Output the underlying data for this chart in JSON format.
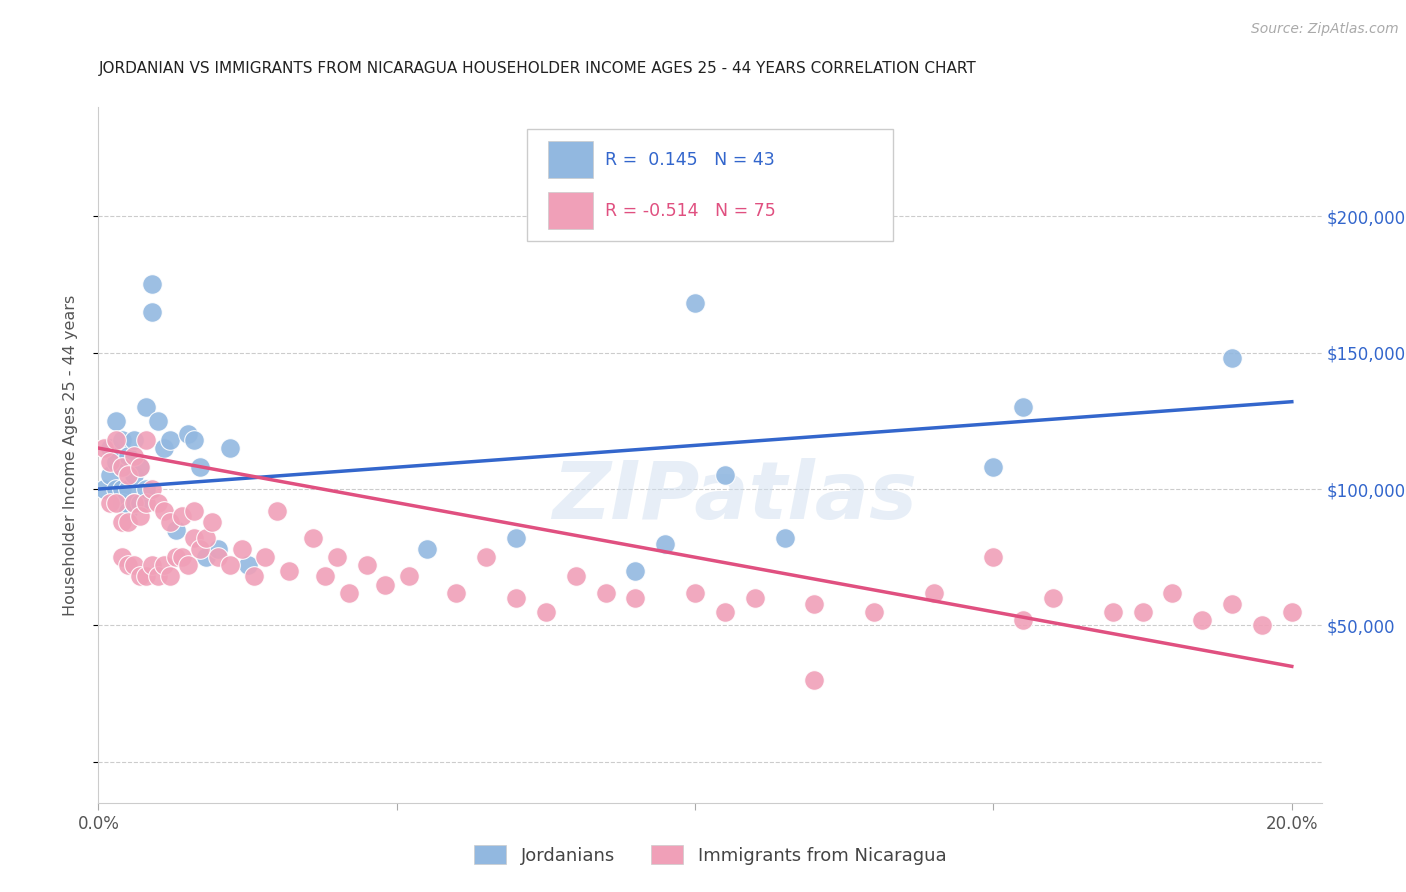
{
  "title": "JORDANIAN VS IMMIGRANTS FROM NICARAGUA HOUSEHOLDER INCOME AGES 25 - 44 YEARS CORRELATION CHART",
  "source": "Source: ZipAtlas.com",
  "ylabel": "Householder Income Ages 25 - 44 years",
  "legend_blue_r": "R =  0.145",
  "legend_blue_n": "  N = 43",
  "legend_pink_r": "R = -0.514",
  "legend_pink_n": "  N = 75",
  "legend_bottom_blue": "Jordanians",
  "legend_bottom_pink": "Immigrants from Nicaragua",
  "blue_color": "#92b8e0",
  "pink_color": "#f0a0b8",
  "blue_line_color": "#3366cc",
  "pink_line_color": "#e05080",
  "blue_x": [
    0.001,
    0.002,
    0.002,
    0.003,
    0.003,
    0.003,
    0.004,
    0.004,
    0.004,
    0.004,
    0.005,
    0.005,
    0.005,
    0.006,
    0.006,
    0.006,
    0.007,
    0.007,
    0.008,
    0.008,
    0.009,
    0.009,
    0.01,
    0.011,
    0.012,
    0.013,
    0.015,
    0.016,
    0.017,
    0.018,
    0.02,
    0.022,
    0.025,
    0.055,
    0.07,
    0.09,
    0.095,
    0.1,
    0.105,
    0.115,
    0.15,
    0.155,
    0.19
  ],
  "blue_y": [
    100000,
    115000,
    105000,
    100000,
    125000,
    110000,
    100000,
    118000,
    95000,
    108000,
    112000,
    100000,
    92000,
    118000,
    105000,
    95000,
    108000,
    95000,
    130000,
    100000,
    165000,
    175000,
    125000,
    115000,
    118000,
    85000,
    120000,
    118000,
    108000,
    75000,
    78000,
    115000,
    72000,
    78000,
    82000,
    70000,
    80000,
    168000,
    105000,
    82000,
    108000,
    130000,
    148000
  ],
  "pink_x": [
    0.001,
    0.002,
    0.002,
    0.003,
    0.003,
    0.004,
    0.004,
    0.004,
    0.005,
    0.005,
    0.005,
    0.006,
    0.006,
    0.006,
    0.007,
    0.007,
    0.007,
    0.008,
    0.008,
    0.008,
    0.009,
    0.009,
    0.01,
    0.01,
    0.011,
    0.011,
    0.012,
    0.012,
    0.013,
    0.014,
    0.014,
    0.015,
    0.016,
    0.016,
    0.017,
    0.018,
    0.019,
    0.02,
    0.022,
    0.024,
    0.026,
    0.028,
    0.03,
    0.032,
    0.036,
    0.038,
    0.04,
    0.042,
    0.045,
    0.048,
    0.052,
    0.06,
    0.065,
    0.07,
    0.075,
    0.08,
    0.085,
    0.09,
    0.1,
    0.105,
    0.11,
    0.12,
    0.13,
    0.14,
    0.15,
    0.155,
    0.16,
    0.17,
    0.175,
    0.18,
    0.185,
    0.19,
    0.195,
    0.2,
    0.12
  ],
  "pink_y": [
    115000,
    110000,
    95000,
    118000,
    95000,
    108000,
    88000,
    75000,
    105000,
    88000,
    72000,
    112000,
    95000,
    72000,
    108000,
    90000,
    68000,
    118000,
    95000,
    68000,
    100000,
    72000,
    95000,
    68000,
    92000,
    72000,
    88000,
    68000,
    75000,
    90000,
    75000,
    72000,
    92000,
    82000,
    78000,
    82000,
    88000,
    75000,
    72000,
    78000,
    68000,
    75000,
    92000,
    70000,
    82000,
    68000,
    75000,
    62000,
    72000,
    65000,
    68000,
    62000,
    75000,
    60000,
    55000,
    68000,
    62000,
    60000,
    62000,
    55000,
    60000,
    58000,
    55000,
    62000,
    75000,
    52000,
    60000,
    55000,
    55000,
    62000,
    52000,
    58000,
    50000,
    55000,
    30000
  ],
  "blue_line_x0": 0.0,
  "blue_line_y0": 100000,
  "blue_line_x1": 0.2,
  "blue_line_y1": 132000,
  "pink_line_x0": 0.0,
  "pink_line_y0": 115000,
  "pink_line_x1": 0.2,
  "pink_line_y1": 35000,
  "xlim": [
    0.0,
    0.205
  ],
  "ylim": [
    -15000,
    240000
  ],
  "y_ticks": [
    0,
    50000,
    100000,
    150000,
    200000
  ],
  "x_ticks": [
    0.0,
    0.05,
    0.1,
    0.15,
    0.2
  ]
}
